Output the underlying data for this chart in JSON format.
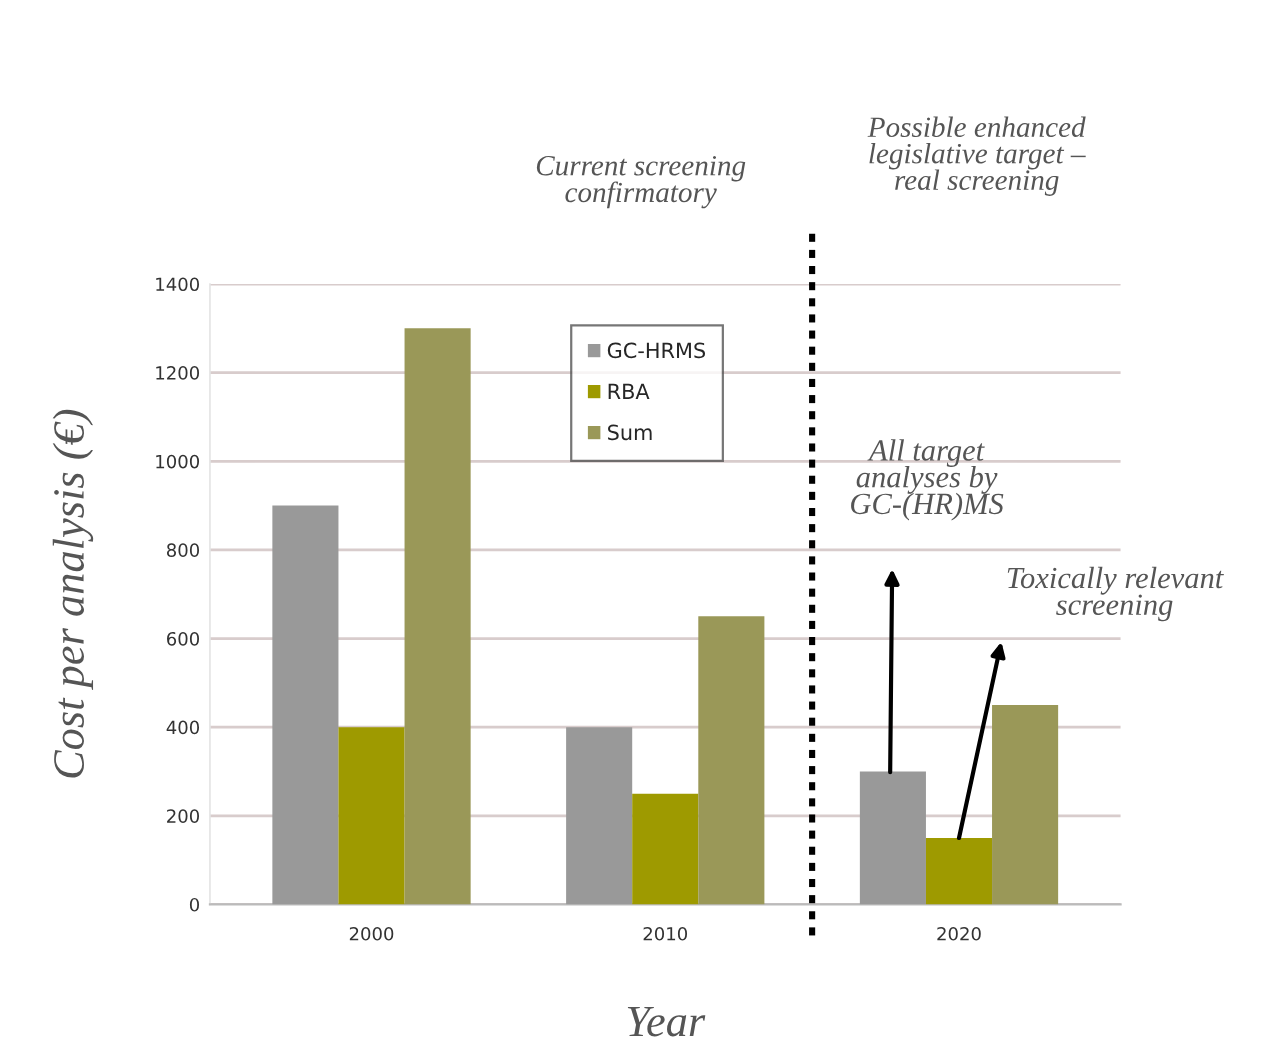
{
  "chart_data": {
    "type": "bar",
    "xlabel": "Year",
    "ylabel": "Cost per analysis (€)",
    "categories": [
      "2000",
      "2010",
      "2020"
    ],
    "series": [
      {
        "name": "GC-HRMS",
        "color": "#999999",
        "values": [
          900,
          400,
          300
        ]
      },
      {
        "name": "RBA",
        "color": "#9e9a00",
        "values": [
          400,
          250,
          150
        ]
      },
      {
        "name": "Sum",
        "color": "#9a9858",
        "values": [
          1300,
          650,
          450
        ]
      }
    ],
    "ylim": [
      0,
      1400
    ],
    "yticks": [
      0,
      200,
      400,
      600,
      800,
      1000,
      1200,
      1400
    ],
    "grid": "y",
    "legend": "top",
    "annotations": [
      "Current screening\nconfirmatory",
      "Possible enhanced\nlegislative target –\nreal screening",
      "All target\nanalyses by\nGC-(HR)MS",
      {
        "text": "Toxically relevant\nscreening",
        "x": "2020",
        "y": 150
      }
    ]
  }
}
